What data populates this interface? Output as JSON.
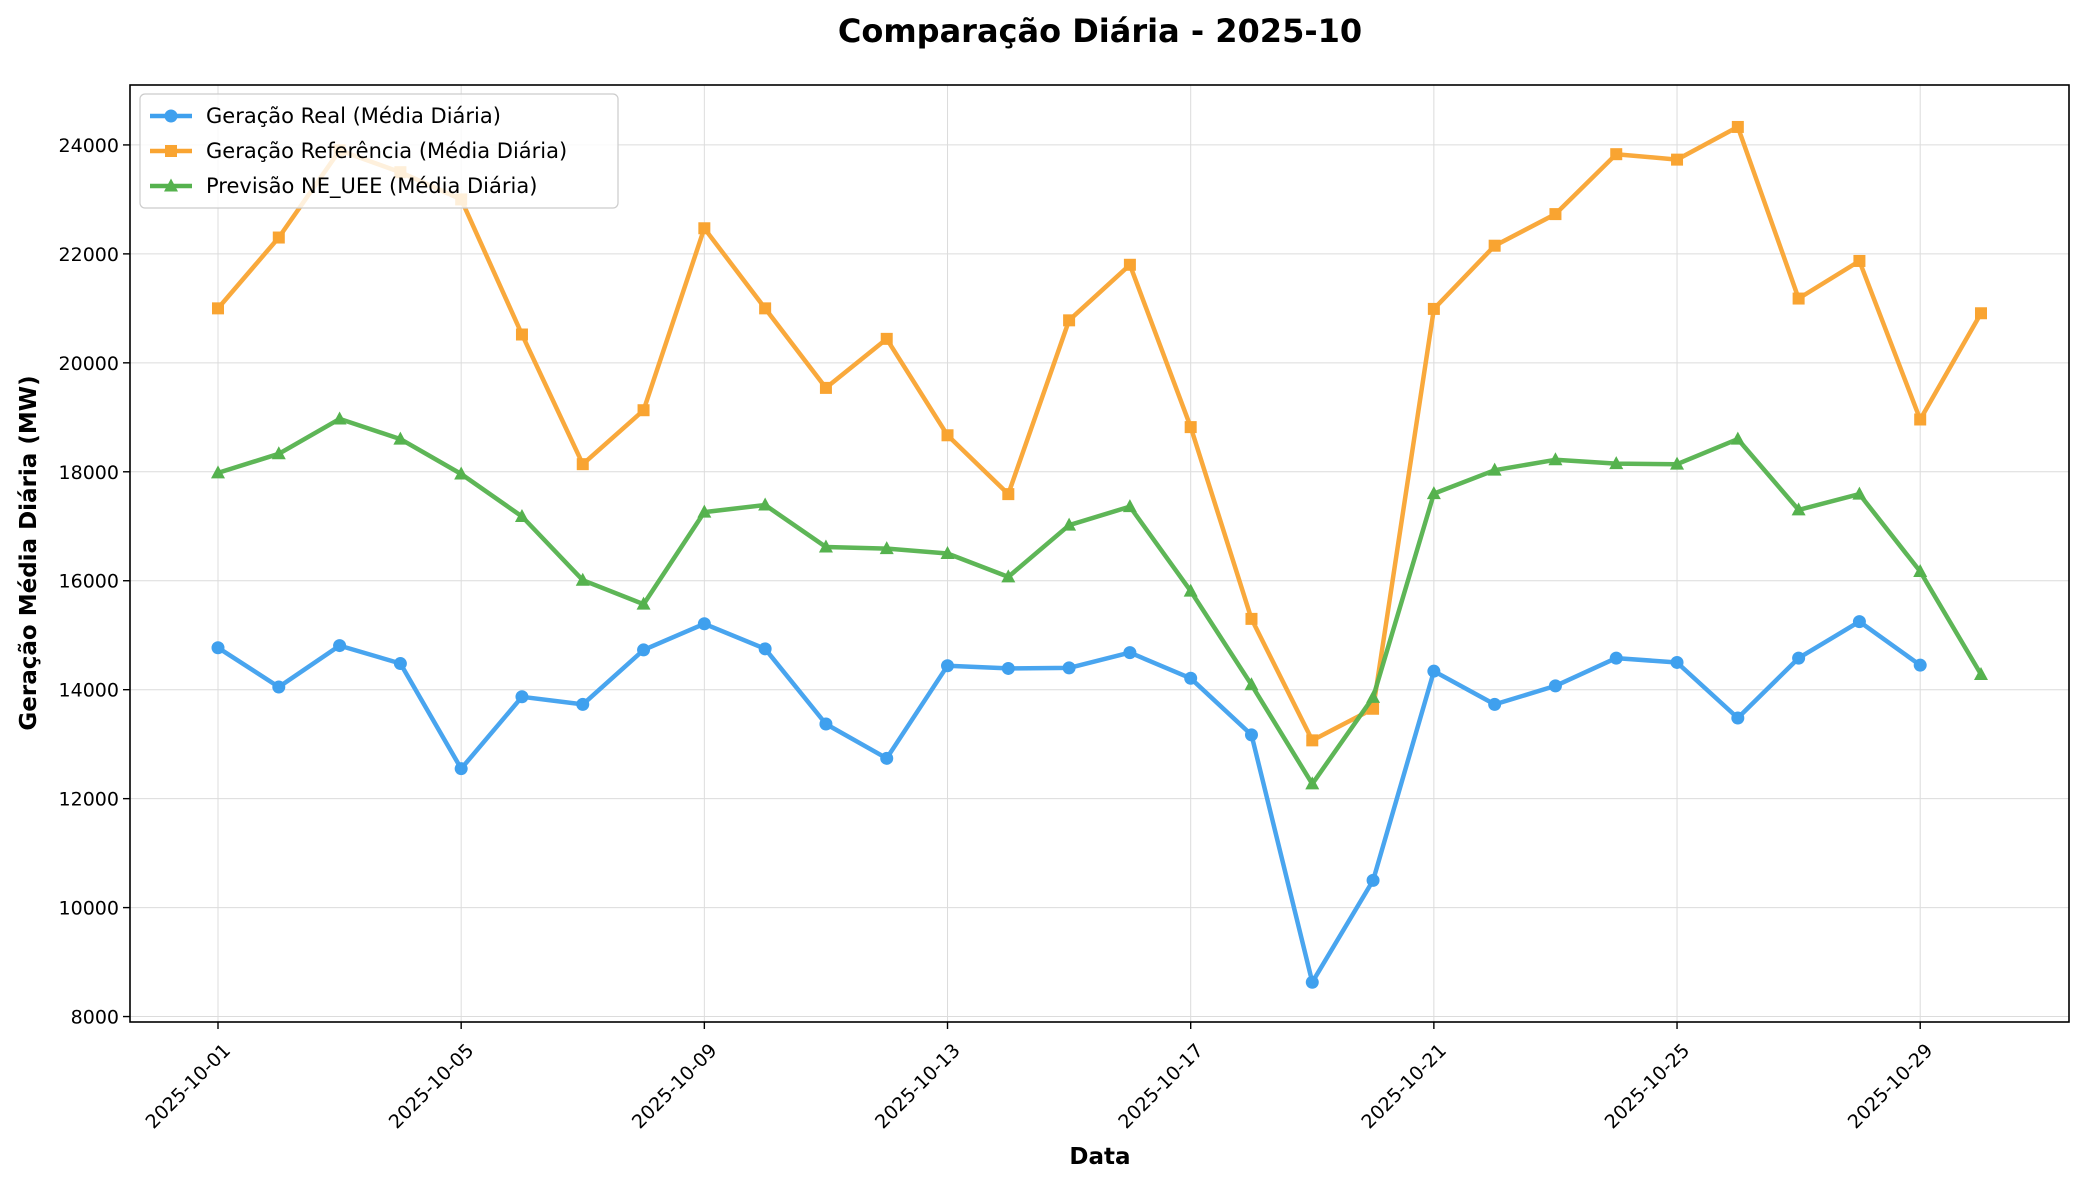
{
  "chart_data": {
    "type": "line",
    "title": "Comparação Diária - 2025-10",
    "xlabel": "Data",
    "ylabel": "Geração Média Diária (MW)",
    "ylim": [
      7900,
      25100
    ],
    "yticks": [
      8000,
      10000,
      12000,
      14000,
      16000,
      18000,
      20000,
      22000,
      24000
    ],
    "xticks": [
      "2025-10-01",
      "2025-10-05",
      "2025-10-09",
      "2025-10-13",
      "2025-10-17",
      "2025-10-21",
      "2025-10-25",
      "2025-10-29"
    ],
    "grid": true,
    "legend_position": "top-left",
    "x": [
      "2025-10-01",
      "2025-10-02",
      "2025-10-03",
      "2025-10-04",
      "2025-10-05",
      "2025-10-06",
      "2025-10-07",
      "2025-10-08",
      "2025-10-09",
      "2025-10-10",
      "2025-10-11",
      "2025-10-12",
      "2025-10-13",
      "2025-10-14",
      "2025-10-15",
      "2025-10-16",
      "2025-10-17",
      "2025-10-18",
      "2025-10-19",
      "2025-10-20",
      "2025-10-21",
      "2025-10-22",
      "2025-10-23",
      "2025-10-24",
      "2025-10-25",
      "2025-10-26",
      "2025-10-27",
      "2025-10-28",
      "2025-10-29",
      "2025-10-30"
    ],
    "series": [
      {
        "name": "Geração Real (Média Diária)",
        "color": "#3fa0ee",
        "marker": "circle",
        "values": [
          14770,
          14050,
          14810,
          14480,
          12550,
          13870,
          13730,
          14730,
          15210,
          14750,
          13370,
          12740,
          14440,
          14390,
          14400,
          14680,
          14210,
          13170,
          8630,
          10500,
          14340,
          13730,
          14070,
          14580,
          14500,
          13480,
          14580,
          15250,
          14450,
          null
        ]
      },
      {
        "name": "Geração Referência (Média Diária)",
        "color": "#f9a431",
        "marker": "square",
        "values": [
          21000,
          22300,
          23900,
          23500,
          23000,
          20520,
          18140,
          19130,
          22470,
          21000,
          19540,
          20440,
          18670,
          17590,
          20780,
          21800,
          18820,
          15300,
          13070,
          13650,
          20990,
          22150,
          22730,
          23830,
          23730,
          24330,
          21180,
          21870,
          18960,
          20910
        ]
      },
      {
        "name": "Previsão NE_UEE (Média Diária)",
        "color": "#55b24e",
        "marker": "triangle",
        "values": [
          17980,
          18330,
          18970,
          18600,
          17960,
          17180,
          16010,
          15570,
          17260,
          17390,
          16620,
          16590,
          16500,
          16070,
          17020,
          17360,
          15810,
          14090,
          12270,
          13860,
          17600,
          18030,
          18220,
          18150,
          18140,
          18600,
          17300,
          17590,
          16170,
          14280
        ]
      }
    ]
  }
}
